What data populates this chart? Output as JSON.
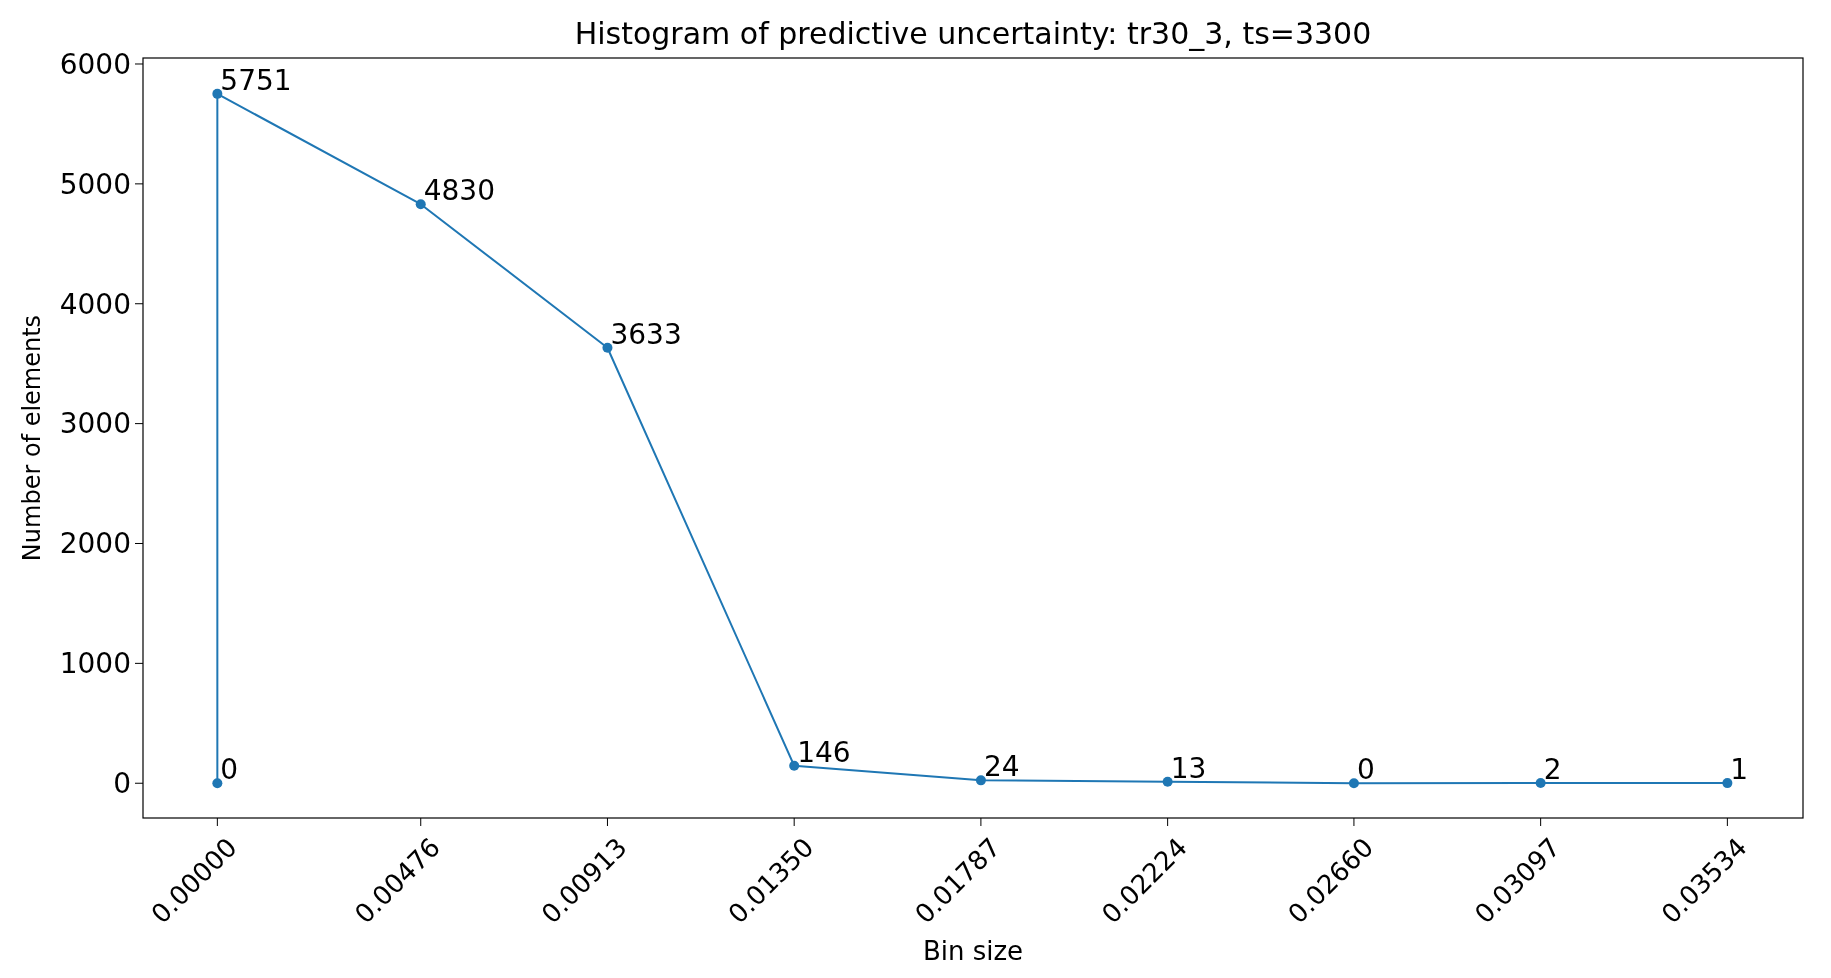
{
  "chart_data": {
    "type": "line",
    "title": "Histogram of predictive uncertainty: tr30_3, ts=3300",
    "xlabel": "Bin size",
    "ylabel": "Number of elements",
    "x": [
      0,
      0,
      0.00476,
      0.00913,
      0.0135,
      0.01787,
      0.02224,
      0.0266,
      0.03097,
      0.03534
    ],
    "series": [
      {
        "color": "#1f77b4",
        "values": [
          0,
          5751,
          4830,
          3633,
          146,
          24,
          13,
          0,
          2,
          1
        ]
      }
    ],
    "marker": "circle",
    "data_labels": true,
    "grid": false,
    "xlim": [
      -0.00174,
      0.03711
    ],
    "ylim": [
      -290,
      6050
    ],
    "xticks": [
      {
        "value": 0,
        "label": "0.00000"
      },
      {
        "value": 0.00476,
        "label": "0.00476"
      },
      {
        "value": 0.00913,
        "label": "0.00913"
      },
      {
        "value": 0.0135,
        "label": "0.01350"
      },
      {
        "value": 0.01787,
        "label": "0.01787"
      },
      {
        "value": 0.02224,
        "label": "0.02224"
      },
      {
        "value": 0.0266,
        "label": "0.02660"
      },
      {
        "value": 0.03097,
        "label": "0.03097"
      },
      {
        "value": 0.03534,
        "label": "0.03534"
      }
    ],
    "yticks": [
      0,
      1000,
      2000,
      3000,
      4000,
      5000,
      6000
    ]
  }
}
